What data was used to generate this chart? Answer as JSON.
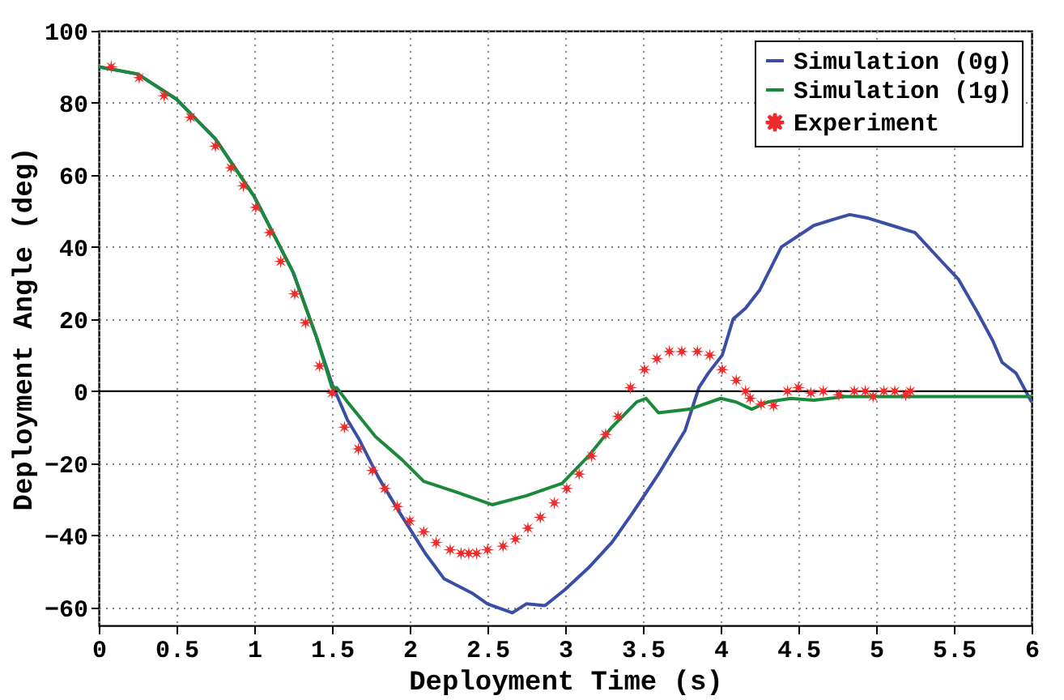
{
  "chart_data": {
    "type": "line",
    "xlabel": "Deployment Time (s)",
    "ylabel": "Deployment Angle (deg)",
    "xlim": [
      0,
      6
    ],
    "xticks": [
      0,
      0.5,
      1,
      1.5,
      2,
      2.5,
      3,
      3.5,
      4,
      4.5,
      5,
      5.5,
      6
    ],
    "ylim": [
      -65,
      100
    ],
    "yticks": [
      -60,
      -40,
      -20,
      0,
      20,
      40,
      60,
      80,
      100
    ],
    "grid": true,
    "legend": "top right",
    "line_style": "solid",
    "ref_lines": [
      {
        "axis": "y",
        "value": 0,
        "color": "#000000"
      }
    ],
    "series": [
      {
        "name": "Simulation (0g)",
        "type": "line",
        "color": "#3a4ea5",
        "x": [
          0,
          0.25,
          0.5,
          0.75,
          1.0,
          1.25,
          1.4,
          1.5,
          1.6,
          1.67,
          1.8,
          1.94,
          2.1,
          2.22,
          2.4,
          2.5,
          2.66,
          2.75,
          2.87,
          3.0,
          3.15,
          3.3,
          3.43,
          3.6,
          3.77,
          3.86,
          3.92,
          4.01,
          4.08,
          4.16,
          4.25,
          4.39,
          4.6,
          4.75,
          4.83,
          4.95,
          5.1,
          5.25,
          5.4,
          5.53,
          5.65,
          5.75,
          5.81,
          5.9,
          6.0
        ],
        "values": [
          90,
          88,
          81,
          70,
          54,
          33,
          15,
          2,
          -8,
          -13,
          -24,
          -34,
          -45,
          -52,
          -56,
          -59,
          -61.5,
          -59,
          -59.5,
          -55,
          -49,
          -42,
          -34,
          -23,
          -11,
          1,
          5,
          10,
          20,
          23,
          28,
          40,
          46,
          48,
          49,
          48,
          46,
          44,
          37,
          31,
          22,
          14,
          8,
          5,
          -3
        ]
      },
      {
        "name": "Simulation (1g)",
        "type": "line",
        "color": "#1a8a3a",
        "x": [
          0,
          0.25,
          0.5,
          0.75,
          1.0,
          1.25,
          1.4,
          1.5,
          1.53,
          1.6,
          1.78,
          1.95,
          2.09,
          2.3,
          2.53,
          2.75,
          2.98,
          3.15,
          3.3,
          3.46,
          3.52,
          3.6,
          3.8,
          4.0,
          4.1,
          4.2,
          4.3,
          4.45,
          4.6,
          4.8,
          5.0,
          6.0
        ],
        "values": [
          90,
          88,
          81,
          70,
          54,
          33,
          15,
          1,
          1,
          -3,
          -12.6,
          -19,
          -25,
          -28,
          -31.5,
          -29,
          -25.6,
          -18,
          -10,
          -3,
          -2,
          -6,
          -5,
          -2,
          -3,
          -5,
          -3,
          -2,
          -2.5,
          -1.5,
          -1.5,
          -1.5
        ]
      },
      {
        "name": "Experiment",
        "type": "scatter",
        "marker": "star",
        "color": "#ee2a2a",
        "x": [
          0.08,
          0.26,
          0.42,
          0.59,
          0.75,
          0.85,
          0.93,
          1.01,
          1.1,
          1.17,
          1.26,
          1.33,
          1.42,
          1.5,
          1.58,
          1.67,
          1.76,
          1.84,
          1.92,
          2.0,
          2.09,
          2.17,
          2.26,
          2.33,
          2.38,
          2.43,
          2.5,
          2.6,
          2.68,
          2.76,
          2.84,
          2.93,
          3.01,
          3.09,
          3.17,
          3.26,
          3.34,
          3.42,
          3.51,
          3.59,
          3.67,
          3.75,
          3.85,
          3.93,
          4.01,
          4.1,
          4.16,
          4.19,
          4.26,
          4.34,
          4.43,
          4.5,
          4.58,
          4.66,
          4.76,
          4.86,
          4.93,
          4.98,
          5.05,
          5.12,
          5.19,
          5.22
        ],
        "values": [
          90,
          87,
          82,
          76,
          68,
          62,
          57,
          51,
          44,
          36,
          27,
          19,
          7,
          -0.5,
          -10,
          -16,
          -22,
          -27,
          -32,
          -36,
          -39,
          -42,
          -44,
          -45,
          -45,
          -45,
          -44,
          -43,
          -41,
          -38,
          -35,
          -31,
          -27,
          -23,
          -18,
          -12,
          -7,
          1,
          6,
          9,
          11,
          11,
          11,
          10,
          6,
          3,
          0,
          -2,
          -3.6,
          -4,
          0,
          1,
          -0.5,
          0,
          -1,
          0,
          0,
          -1.5,
          0,
          0,
          -1,
          0
        ]
      }
    ]
  }
}
